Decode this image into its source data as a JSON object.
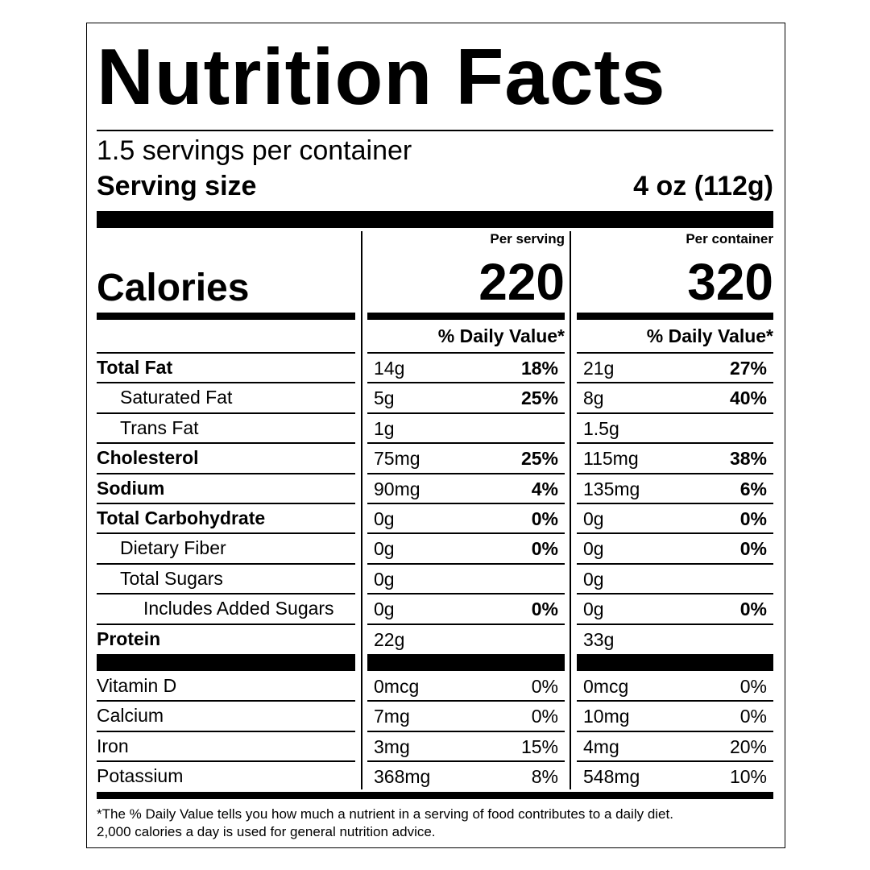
{
  "title": "Nutrition Facts",
  "servings": "1.5 servings per container",
  "serving_size": {
    "label": "Serving size",
    "value": "4 oz (112g)"
  },
  "calories": {
    "label": "Calories",
    "per_serving_heading": "Per serving",
    "per_serving": "220",
    "per_container_heading": "Per container",
    "per_container": "320"
  },
  "dv_heading": [
    "% Daily Value*",
    "% Daily Value*"
  ],
  "nutrients": [
    {
      "name": "Total Fat",
      "bold": true,
      "indent": 0,
      "serving": [
        "14g",
        "18%"
      ],
      "container": [
        "21g",
        "27%"
      ]
    },
    {
      "name": "Saturated Fat",
      "bold": false,
      "indent": 1,
      "serving": [
        "5g",
        "25%"
      ],
      "container": [
        "8g",
        "40%"
      ]
    },
    {
      "name": "Trans Fat",
      "bold": false,
      "indent": 1,
      "serving": [
        "1g"
      ],
      "container": [
        "1.5g"
      ]
    },
    {
      "name": "Cholesterol",
      "bold": true,
      "indent": 0,
      "serving": [
        "75mg",
        "25%"
      ],
      "container": [
        "115mg",
        "38%"
      ]
    },
    {
      "name": "Sodium",
      "bold": true,
      "indent": 0,
      "serving": [
        "90mg",
        "4%"
      ],
      "container": [
        "135mg",
        "6%"
      ]
    },
    {
      "name": "Total Carbohydrate",
      "bold": true,
      "indent": 0,
      "serving": [
        "0g",
        "0%"
      ],
      "container": [
        "0g",
        "0%"
      ]
    },
    {
      "name": "Dietary Fiber",
      "bold": false,
      "indent": 1,
      "serving": [
        "0g",
        "0%"
      ],
      "container": [
        "0g",
        "0%"
      ]
    },
    {
      "name": "Total Sugars",
      "bold": false,
      "indent": 1,
      "serving": [
        "0g"
      ],
      "container": [
        "0g"
      ]
    },
    {
      "name": "Includes Added Sugars",
      "bold": false,
      "indent": 2,
      "serving": [
        "0g",
        "0%"
      ],
      "container": [
        "0g",
        "0%"
      ]
    },
    {
      "name": "Protein",
      "bold": true,
      "indent": 0,
      "serving": [
        "22g"
      ],
      "container": [
        "33g"
      ]
    }
  ],
  "vitamins": [
    {
      "name": "Vitamin D",
      "serving": [
        "0mcg",
        "0%"
      ],
      "container": [
        "0mcg",
        "0%"
      ]
    },
    {
      "name": "Calcium",
      "serving": [
        "7mg",
        "0%"
      ],
      "container": [
        "10mg",
        "0%"
      ]
    },
    {
      "name": "Iron",
      "serving": [
        "3mg",
        "15%"
      ],
      "container": [
        "4mg",
        "20%"
      ]
    },
    {
      "name": "Potassium",
      "serving": [
        "368mg",
        "8%"
      ],
      "container": [
        "548mg",
        "10%"
      ]
    }
  ],
  "footnote": [
    "*The % Daily Value tells you how much a nutrient in a serving of food contributes to a daily diet.",
    "2,000 calories a day is used for general nutrition advice."
  ]
}
